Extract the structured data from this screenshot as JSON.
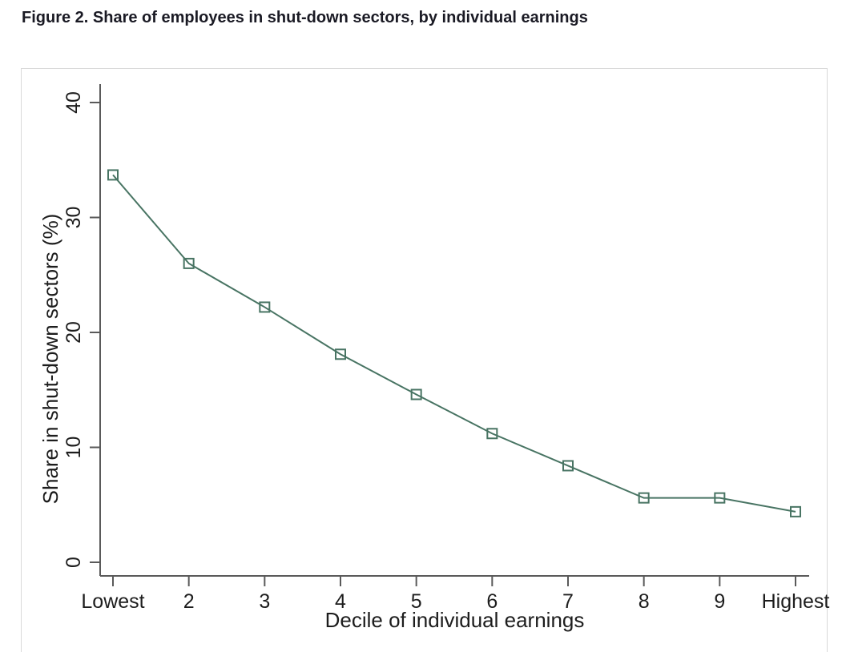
{
  "title": "Figure 2. Share of employees in shut-down sectors, by individual earnings",
  "chart_data": {
    "type": "line",
    "title": "Figure 2. Share of employees in shut-down sectors, by individual earnings",
    "categories": [
      "Lowest",
      "2",
      "3",
      "4",
      "5",
      "6",
      "7",
      "8",
      "9",
      "Highest"
    ],
    "series": [
      {
        "name": "Share in shut-down sectors",
        "values": [
          33.7,
          26.0,
          22.2,
          18.1,
          14.6,
          11.2,
          8.4,
          5.6,
          5.6,
          4.4
        ]
      }
    ],
    "xlabel": "Decile of individual earnings",
    "ylabel": "Share in shut-down sectors (%)",
    "ylim": [
      0,
      40
    ],
    "yticks": [
      0,
      10,
      20,
      30,
      40
    ],
    "grid": false,
    "legend": "none",
    "marker": "hollow-square",
    "colors": {
      "line": "#487463",
      "marker_stroke": "#487463",
      "axis": "#5a5a5a",
      "text": "#1d1d1d",
      "frame_border": "#d9d9d9",
      "background": "#ffffff",
      "title_text": "#1a1a24"
    }
  }
}
